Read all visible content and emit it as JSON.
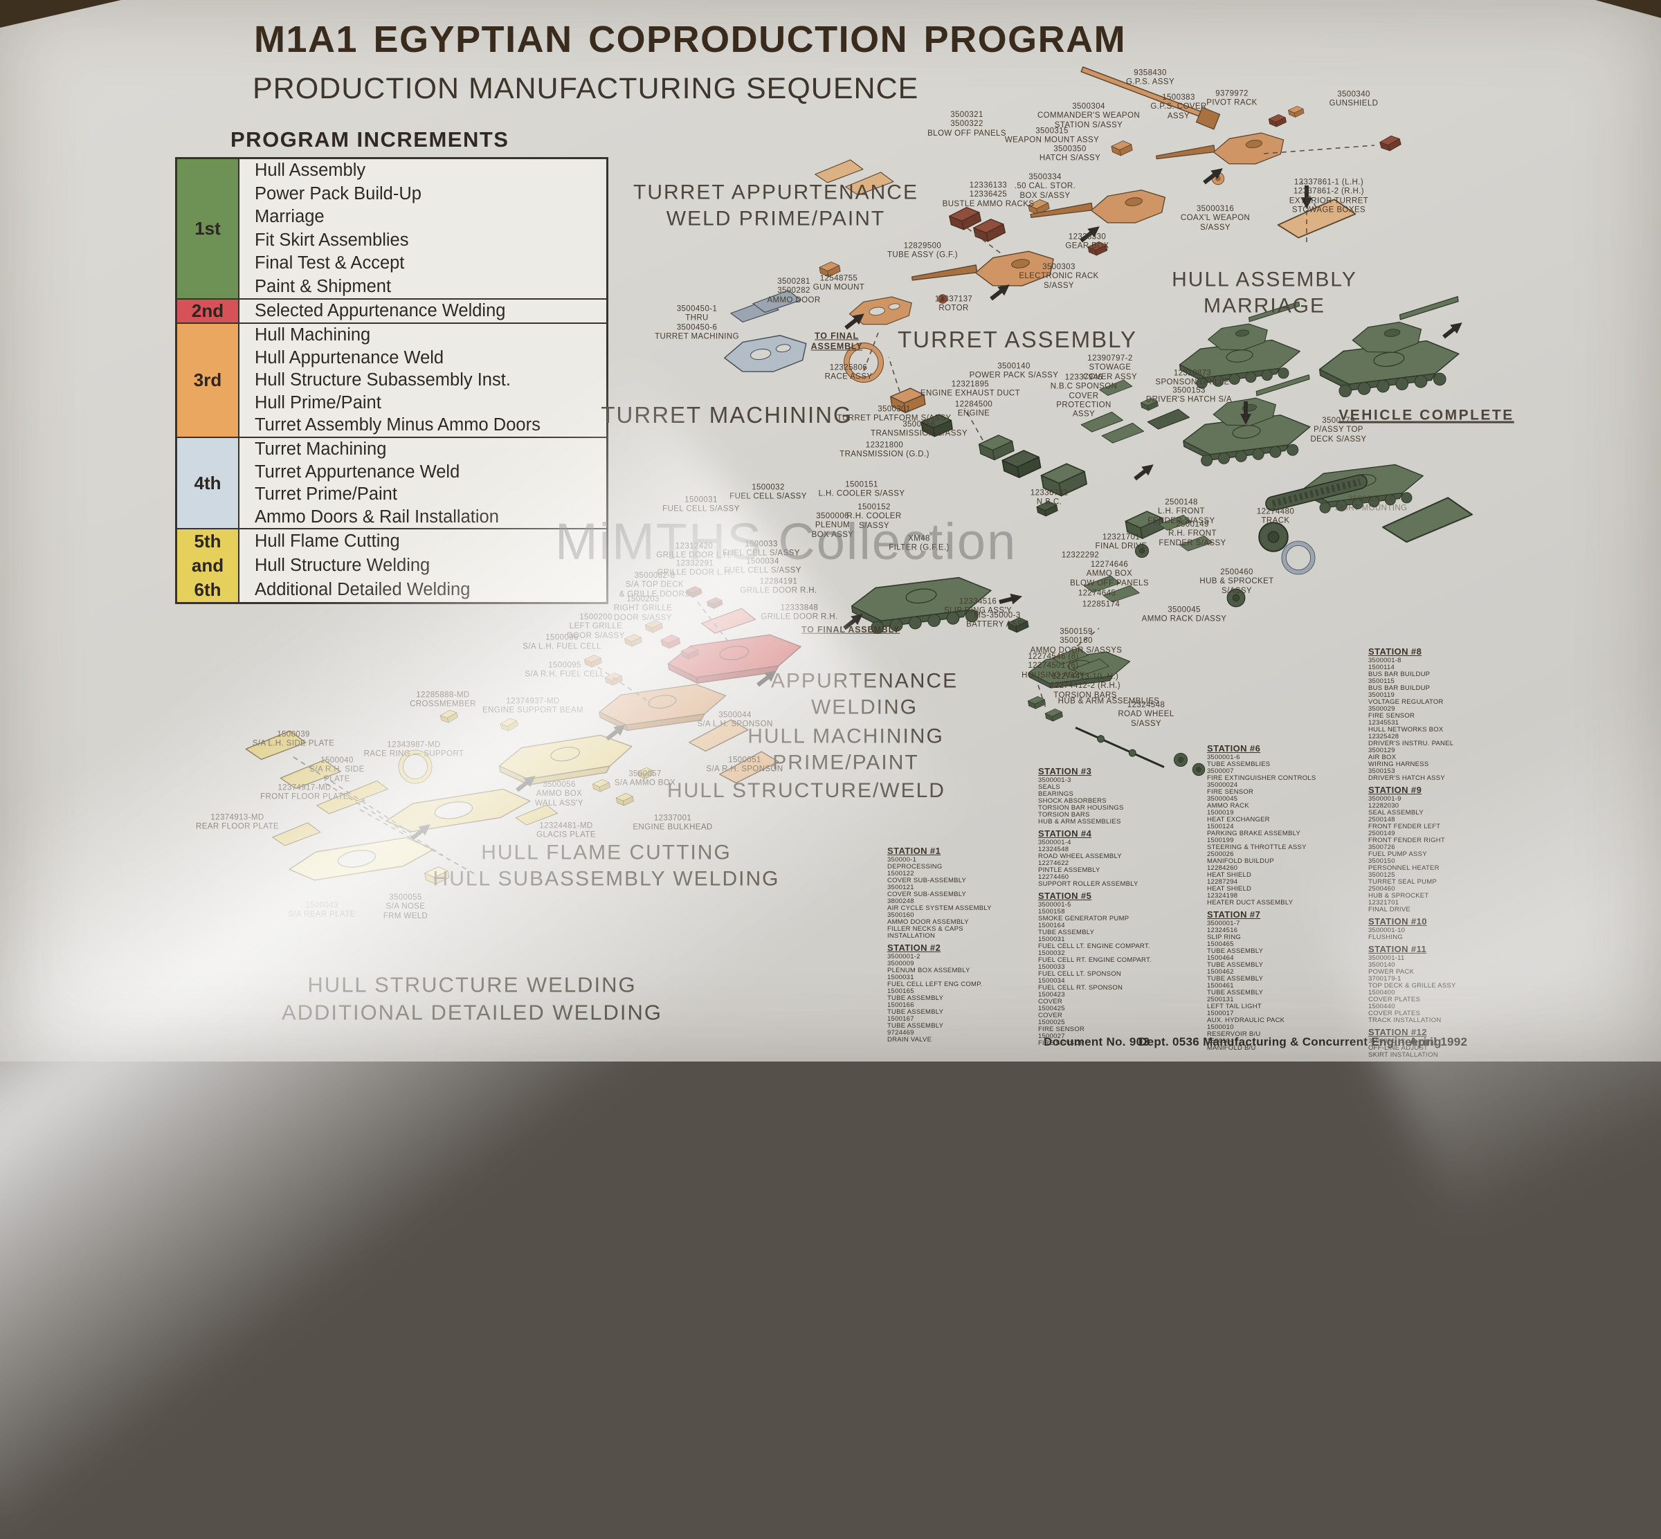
{
  "header": {
    "title": "M1A1 EGYPTIAN  COPRODUCTION PROGRAM",
    "subtitle": "PRODUCTION MANUFACTURING SEQUENCE"
  },
  "watermark": "MiMTHS Collection",
  "increments": {
    "heading": "PROGRAM INCREMENTS",
    "rows": [
      {
        "labels": [
          "1st"
        ],
        "color": "#6e9156",
        "items": [
          "Hull Assembly",
          "Power Pack Build-Up",
          "Marriage",
          "Fit Skirt Assemblies",
          "Final Test & Accept",
          "Paint & Shipment"
        ]
      },
      {
        "labels": [
          "2nd"
        ],
        "color": "#d65257",
        "items": [
          "Selected Appurtenance Welding"
        ]
      },
      {
        "labels": [
          "3rd"
        ],
        "color": "#e9a75f",
        "items": [
          "Hull Machining",
          "Hull Appurtenance Weld",
          "Hull Structure Subassembly Inst.",
          "Hull Prime/Paint",
          "Turret Assembly Minus Ammo Doors"
        ]
      },
      {
        "labels": [
          "4th"
        ],
        "color": "#cfd9e1",
        "items": [
          "Turret Machining",
          "Turret Appurtenance Weld",
          "Turret Prime/Paint",
          "Ammo Doors & Rail Installation"
        ]
      },
      {
        "labels": [
          "5th",
          "and",
          "6th"
        ],
        "color": "#e6d05c",
        "items": [
          "Hull Flame Cutting",
          "Hull Structure Welding",
          "Additional Detailed Welding"
        ]
      }
    ]
  },
  "sections": [
    "TURRET APPURTENANCE\nWELD PRIME/PAINT",
    "TURRET MACHINING",
    "TURRET ASSEMBLY",
    "HULL ASSEMBLY\nMARRIAGE",
    "VEHICLE COMPLETE",
    "APPURTENANCE\nWELDING",
    "HULL MACHINING\nPRIME/PAINT",
    "HULL STRUCTURE/WELD",
    "HULL FLAME CUTTING\nHULL SUBASSEMBLY WELDING",
    "HULL STRUCTURE WELDING\nADDITIONAL DETAILED WELDING"
  ],
  "part_labels": [
    "3500321\n3500322\nBLOW OFF PANELS",
    "3500304\nCOMMANDER'S WEAPON\nSTATION S/ASSY",
    "9358430\nG.P.S. ASSY",
    "1500383\nG.P.S. COVER\nASSY",
    "9379972\nPIVOT RACK",
    "3500315\nWEAPON MOUNT ASSY",
    "3500350\nHATCH S/ASSY",
    "3500334\n.50 CAL. STOR.\nBOX S/ASSY",
    "12336133\n12336425\nBUSTLE AMMO RACKS",
    "12338330\nGEAR BOX",
    "35000316\nCOAX'L WEAPON\nS/ASSY",
    "3500303\nELECTRONIC RACK\nS/ASSY",
    "3500340\nGUNSHIELD",
    "12337861-1 (L.H.)\n12337861-2 (R.H.)\nEXTERIOR TURRET\nSTOWAGE BOXES",
    "12829500\nTUBE ASSY (G.F.)",
    "12548755\nGUN MOUNT",
    "12337137\nROTOR",
    "3500281\n3500282\nAMMO DOOR",
    "3500450-1\nTHRU\n3500450-6\nTURRET MACHINING",
    "TO FINAL\nASSEMBLY",
    "12325806\nRACE ASSY",
    "3500301\nTURRET PLATFORM S/ASSY",
    "3500156\nTRANSMISSION S/ASSY",
    "12321800\nTRANSMISSION (G.D.)",
    "3500140\nPOWER PACK S/ASSY",
    "12321895\nENGINE EXHAUST DUCT",
    "12284500\nENGINE",
    "12390797-2\nSTOWAGE\nCOVER ASSY",
    "12337946\nN.B.C SPONSON\nCOVER\nPROTECTION\nASSY",
    "12310873\nSPONSON GRILLE",
    "3500153\nDRIVER'S HATCH S/A",
    "1500032\nFUEL CELL S/ASSY",
    "1500031\nFUEL CELL S/ASSY",
    "1500151\nL.H. COOLER S/ASSY",
    "1500152\nR.H. COOLER\nS/ASSY",
    "3500006\nPLENUM\nBOX ASSY",
    "XM48\nFILTER (G.F.E.)",
    "1500033\nFUEL CELL S/ASSY",
    "1500034\nFUEL CELL S/ASSY",
    "12312420\nGRILLE DOOR L.H.",
    "12332291\nGRILLE DOOR L.H.",
    "12284191\nGRILLE DOOR R.H.",
    "12333848\nGRILLE DOOR R.H.",
    "12336782\nN.B.C.",
    "TO FINAL ASSEMBLY",
    "12334516\nSLIP RING ASS'Y",
    "MS-35000-3\nBATTERY ASSY",
    "3500159\n3500160\nAMMO DOOR S/ASSYS",
    "12274546 (8)\n12274501 (6)\nHOUSING ASSY",
    "12274413-1(L.H.)\n12274412-2 (R.H.)\nTORSION BARS",
    "HUB & ARM ASSEMBLIES",
    "12324548\nROAD WHEEL\nS/ASSY",
    "3500045\nAMMO RACK D/ASSY",
    "2500460\nHUB & SPROCKET\nS/ASSY",
    "12321701\nFINAL DRIVE",
    "12322292",
    "12274646\nAMMO BOX\nBLOW OFF PANELS",
    "12274645",
    "12285174",
    "2500148\nL.H. FRONT\nFENDER S/ASSY",
    "2500149\nR.H. FRONT\nFENDER S/ASSY",
    "12274480\nTRACK",
    "3500179\nP/ASSY TOP\nDECK S/ASSY",
    "3500001-18\nSKIRT MOUNTING",
    "12285888-MD\nCROSSMEMBER",
    "12374937-MD\nENGINE SUPPORT BEAM",
    "1500096\nS/A L.H. FUEL CELL",
    "1500095\nS/A R.H. FUEL CELL",
    "3500044\nS/A L.H. SPONSON",
    "1500051\nS/A R.H. SPONSON",
    "3500057\nS/A AMMO BOX",
    "3500056\nAMMO BOX\nWALL ASS'Y",
    "12324481-MD\nGLACIS PLATE",
    "12337001\nENGINE BULKHEAD",
    "1500039\nS/A L.H. SIDE PLATE",
    "1500040\nS/A R.H. SIDE\nPLATE",
    "12374917-MD\nFRONT FLOOR PLATE",
    "12374913-MD\nREAR FLOOR PLATE",
    "12343987-MD\nRACE RING — SUPPORT",
    "1500043\nS/A REAR PLATE",
    "3500055\nS/A NOSE\nFRM WELD",
    "1500200\nLEFT GRILLE\nDOOR S/ASSY",
    "1500203\nRIGHT GRILLE\nDOOR S/ASSY",
    "3500062-8\nS/A TOP DECK\n& GRILLE DOORS"
  ],
  "stations": [
    {
      "title": "STATION #1",
      "items": [
        "350000-1",
        "DEPROCESSING",
        "1500122",
        "COVER SUB-ASSEMBLY",
        "3500121",
        "COVER SUB-ASSEMBLY",
        "3800248",
        "AIR CYCLE SYSTEM ASSEMBLY",
        "3500160",
        "AMMO DOOR ASSEMBLY",
        "FILLER NECKS & CAPS",
        "INSTALLATION"
      ]
    },
    {
      "title": "STATION #2",
      "items": [
        "3500001-2",
        "3500009",
        "PLENUM BOX ASSEMBLY",
        "1500031",
        "FUEL CELL LEFT ENG COMP.",
        "1500165",
        "TUBE ASSEMBLY",
        "1500166",
        "TUBE ASSEMBLY",
        "1500167",
        "TUBE ASSEMBLY",
        "9724469",
        "DRAIN VALVE"
      ]
    },
    {
      "title": "STATION #3",
      "items": [
        "3500001-3",
        "SEALS",
        "BEARINGS",
        "SHOCK ABSORBERS",
        "TORSION BAR HOUSINGS",
        "TORSION BARS",
        "HUB & ARM ASSEMBLIES"
      ]
    },
    {
      "title": "STATION #4",
      "items": [
        "3500001-4",
        "12324548",
        "ROAD WHEEL ASSEMBLY",
        "12274622",
        "PINTLE ASSEMBLY",
        "12274460",
        "SUPPORT ROLLER ASSEMBLY"
      ]
    },
    {
      "title": "STATION #5",
      "items": [
        "3500001-5",
        "1500158",
        "SMOKE GENERATOR PUMP",
        "1500164",
        "TUBE ASSEMBLY",
        "1500031",
        "FUEL CELL LT. ENGINE COMPART.",
        "1500032",
        "FUEL CELL RT. ENGINE COMPART.",
        "1500033",
        "FUEL CELL LT. SPONSON",
        "1500034",
        "FUEL CELL RT. SPONSON",
        "1500423",
        "COVER",
        "1500425",
        "COVER",
        "1500025",
        "FIRE SENSOR",
        "1500027",
        "FIRE SENSOR"
      ]
    },
    {
      "title": "STATION #6",
      "items": [
        "3500001-6",
        "TUBE ASSEMBLIES",
        "3500007",
        "FIRE EXTINGUISHER CONTROLS",
        "35000024",
        "FIRE SENSOR",
        "35000045",
        "AMMO RACK",
        "1500019",
        "HEAT EXCHANGER",
        "1500124",
        "PARKING BRAKE ASSEMBLY",
        "1500199",
        "STEERING & THROTTLE ASSY",
        "2500026",
        "MANIFOLD BUILDUP",
        "12284260",
        "HEAT SHIELD",
        "12287294",
        "HEAT SHIELD",
        "12324198",
        "HEATER DUCT ASSEMBLY"
      ]
    },
    {
      "title": "STATION #7",
      "items": [
        "3500001-7",
        "12324516",
        "SLIP RING",
        "1500465",
        "TUBE ASSEMBLY",
        "1500464",
        "TUBE ASSEMBLY",
        "1500462",
        "TUBE ASSEMBLY",
        "1500461",
        "TUBE ASSEMBLY",
        "2500131",
        "LEFT TAIL LIGHT",
        "1500017",
        "AUX. HYDRAULIC PACK",
        "1500010",
        "RESERVOIR B/U",
        "1500104",
        "MANIFOLD B/U"
      ]
    },
    {
      "title": "STATION #8",
      "items": [
        "3500001-8",
        "1500114",
        "BUS BAR BUILDUP",
        "3500115",
        "BUS BAR BUILDUP",
        "3500119",
        "VOLTAGE REGULATOR",
        "3500029",
        "FIRE SENSOR",
        "12345531",
        "HULL NETWORKS BOX",
        "12325428",
        "DRIVER'S INSTRU. PANEL",
        "3500129",
        "AIR BOX",
        "WIRING HARNESS",
        "3500153",
        "DRIVER'S HATCH ASSY"
      ]
    },
    {
      "title": "STATION #9",
      "items": [
        "3500001-9",
        "12282030",
        "SEAL ASSEMBLY",
        "2500148",
        "FRONT FENDER LEFT",
        "2500149",
        "FRONT FENDER RIGHT",
        "3500726",
        "FUEL PUMP ASSY",
        "3500150",
        "PERSONNEL HEATER",
        "3500125",
        "TURRET SEAL PUMP",
        "2500460",
        "HUB & SPROCKET",
        "12321701",
        "FINAL DRIVE"
      ]
    },
    {
      "title": "STATION #10",
      "items": [
        "3500001-10",
        "FLUSHING"
      ]
    },
    {
      "title": "STATION #11",
      "items": [
        "3500001-11",
        "3500140",
        "POWER PACK",
        "3700179-1",
        "TOP DECK & GRILLE ASSY",
        "1500400",
        "COVER PLATES",
        "1500440",
        "COVER PLATES",
        "TRACK INSTALLATION"
      ]
    },
    {
      "title": "STATION #12",
      "items": [
        "3500001-12",
        "OFF-LINE ADJUST",
        "SKIRT INSTALLATION"
      ]
    }
  ],
  "footer": {
    "doc": "Document No. 903",
    "dept": "Dept. 0536 Manufacturing & Concurrent Engineering",
    "date": "April 1992"
  },
  "colors": {
    "paper": "#d6d4cf",
    "title_ink": "#3a2c1d",
    "label_ink": "#453a2d",
    "section_ink": "#4e463c",
    "increment_green": "#6e9156",
    "increment_red": "#d65257",
    "increment_orange": "#e9a75f",
    "increment_blue": "#cfd9e1",
    "increment_yellow": "#e6d05c",
    "tank_tan": "#cf9565",
    "tank_khaki": "#d9c472",
    "tank_red": "#c5524f",
    "tank_green": "#64745a",
    "tank_gray": "#b3bdc7",
    "watermark_gray": "#6f6f6f"
  }
}
